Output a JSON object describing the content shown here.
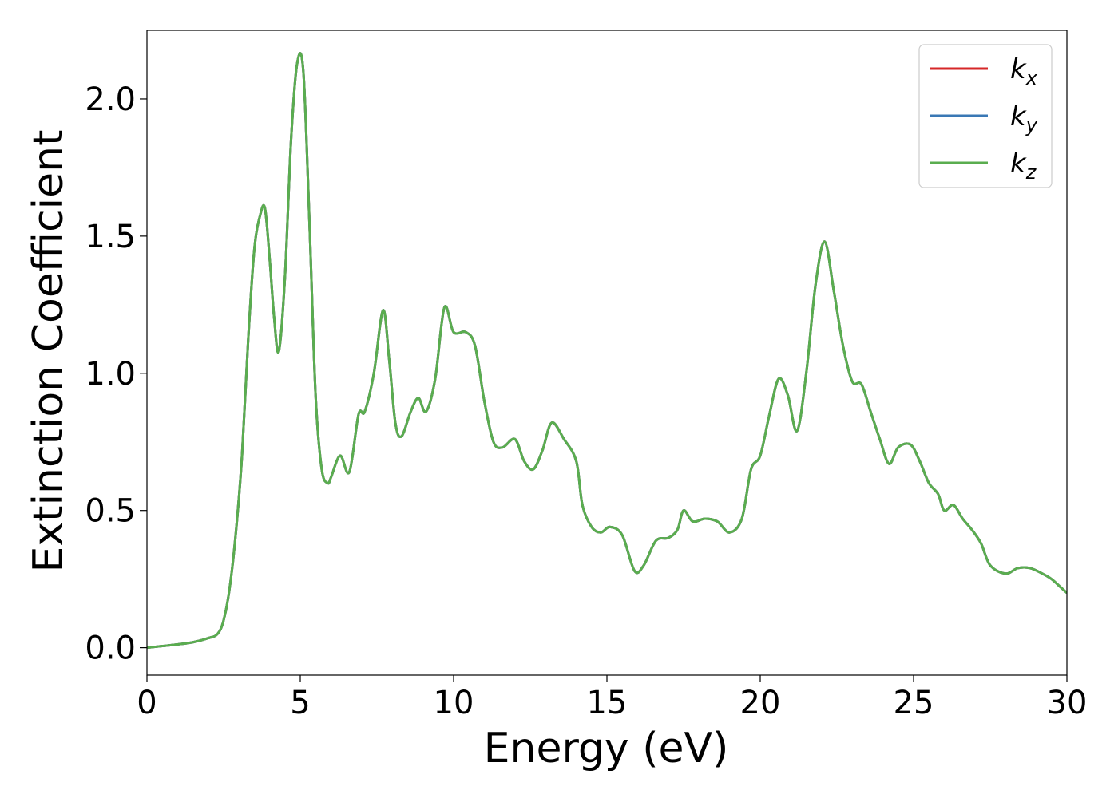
{
  "chart_data": {
    "type": "line",
    "title": "",
    "xlabel": "Energy (eV)",
    "ylabel": "Extinction Coefficient",
    "xlim": [
      0,
      30
    ],
    "ylim": [
      -0.1,
      2.25
    ],
    "xticks": [
      0,
      5,
      10,
      15,
      20,
      25,
      30
    ],
    "xtick_labels": [
      "0",
      "5",
      "10",
      "15",
      "20",
      "25",
      "30"
    ],
    "yticks": [
      0.0,
      0.5,
      1.0,
      1.5,
      2.0
    ],
    "ytick_labels": [
      "0.0",
      "0.5",
      "1.0",
      "1.5",
      "2.0"
    ],
    "grid": false,
    "legend_position": "top-right",
    "x": [
      0,
      0.5,
      1.0,
      1.5,
      2.0,
      2.3,
      2.5,
      2.7,
      2.9,
      3.1,
      3.3,
      3.5,
      3.7,
      3.85,
      4.0,
      4.15,
      4.3,
      4.5,
      4.7,
      4.9,
      5.1,
      5.3,
      5.5,
      5.7,
      5.9,
      6.0,
      6.3,
      6.6,
      6.9,
      7.1,
      7.4,
      7.7,
      7.9,
      8.1,
      8.3,
      8.6,
      8.85,
      9.1,
      9.4,
      9.7,
      10.0,
      10.4,
      10.7,
      11.0,
      11.3,
      11.6,
      12.0,
      12.3,
      12.6,
      12.9,
      13.2,
      13.6,
      14.0,
      14.2,
      14.5,
      14.8,
      15.1,
      15.5,
      15.9,
      16.2,
      16.6,
      17.0,
      17.3,
      17.5,
      17.8,
      18.2,
      18.6,
      19.0,
      19.4,
      19.7,
      20.0,
      20.3,
      20.6,
      20.9,
      21.2,
      21.5,
      21.8,
      22.1,
      22.4,
      22.7,
      23.0,
      23.3,
      23.6,
      23.9,
      24.2,
      24.5,
      24.9,
      25.2,
      25.5,
      25.8,
      26.0,
      26.3,
      26.6,
      26.9,
      27.2,
      27.5,
      28.0,
      28.4,
      28.8,
      29.2,
      29.5,
      29.8,
      30.0
    ],
    "series": [
      {
        "name": "kx",
        "color": "#d62728",
        "values": [
          0.0,
          0.006,
          0.012,
          0.02,
          0.035,
          0.05,
          0.1,
          0.22,
          0.42,
          0.7,
          1.12,
          1.45,
          1.58,
          1.6,
          1.42,
          1.2,
          1.08,
          1.35,
          1.85,
          2.13,
          2.1,
          1.55,
          0.92,
          0.65,
          0.6,
          0.62,
          0.7,
          0.64,
          0.85,
          0.86,
          1.0,
          1.23,
          1.05,
          0.82,
          0.77,
          0.86,
          0.91,
          0.86,
          0.98,
          1.24,
          1.15,
          1.15,
          1.1,
          0.9,
          0.75,
          0.73,
          0.76,
          0.68,
          0.65,
          0.72,
          0.82,
          0.76,
          0.68,
          0.52,
          0.44,
          0.42,
          0.44,
          0.41,
          0.28,
          0.3,
          0.39,
          0.4,
          0.43,
          0.5,
          0.46,
          0.47,
          0.46,
          0.42,
          0.47,
          0.65,
          0.7,
          0.85,
          0.98,
          0.92,
          0.79,
          1.0,
          1.32,
          1.48,
          1.3,
          1.1,
          0.97,
          0.96,
          0.86,
          0.76,
          0.67,
          0.73,
          0.74,
          0.68,
          0.6,
          0.56,
          0.5,
          0.52,
          0.47,
          0.43,
          0.38,
          0.3,
          0.27,
          0.29,
          0.29,
          0.27,
          0.25,
          0.22,
          0.2
        ]
      },
      {
        "name": "ky",
        "color": "#3a78b5",
        "values": [
          0.0,
          0.006,
          0.012,
          0.02,
          0.035,
          0.05,
          0.1,
          0.22,
          0.42,
          0.7,
          1.12,
          1.45,
          1.58,
          1.6,
          1.42,
          1.2,
          1.08,
          1.35,
          1.85,
          2.13,
          2.1,
          1.55,
          0.92,
          0.65,
          0.6,
          0.62,
          0.7,
          0.64,
          0.85,
          0.86,
          1.0,
          1.23,
          1.05,
          0.82,
          0.77,
          0.86,
          0.91,
          0.86,
          0.98,
          1.24,
          1.15,
          1.15,
          1.1,
          0.9,
          0.75,
          0.73,
          0.76,
          0.68,
          0.65,
          0.72,
          0.82,
          0.76,
          0.68,
          0.52,
          0.44,
          0.42,
          0.44,
          0.41,
          0.28,
          0.3,
          0.39,
          0.4,
          0.43,
          0.5,
          0.46,
          0.47,
          0.46,
          0.42,
          0.47,
          0.65,
          0.7,
          0.85,
          0.98,
          0.92,
          0.79,
          1.0,
          1.32,
          1.48,
          1.3,
          1.1,
          0.97,
          0.96,
          0.86,
          0.76,
          0.67,
          0.73,
          0.74,
          0.68,
          0.6,
          0.56,
          0.5,
          0.52,
          0.47,
          0.43,
          0.38,
          0.3,
          0.27,
          0.29,
          0.29,
          0.27,
          0.25,
          0.22,
          0.2
        ]
      },
      {
        "name": "kz",
        "color": "#5aad4f",
        "values": [
          0.0,
          0.006,
          0.012,
          0.02,
          0.035,
          0.05,
          0.1,
          0.22,
          0.42,
          0.7,
          1.12,
          1.45,
          1.58,
          1.6,
          1.42,
          1.2,
          1.08,
          1.35,
          1.85,
          2.13,
          2.1,
          1.55,
          0.92,
          0.65,
          0.6,
          0.62,
          0.7,
          0.64,
          0.85,
          0.86,
          1.0,
          1.23,
          1.05,
          0.82,
          0.77,
          0.86,
          0.91,
          0.86,
          0.98,
          1.24,
          1.15,
          1.15,
          1.1,
          0.9,
          0.75,
          0.73,
          0.76,
          0.68,
          0.65,
          0.72,
          0.82,
          0.76,
          0.68,
          0.52,
          0.44,
          0.42,
          0.44,
          0.41,
          0.28,
          0.3,
          0.39,
          0.4,
          0.43,
          0.5,
          0.46,
          0.47,
          0.46,
          0.42,
          0.47,
          0.65,
          0.7,
          0.85,
          0.98,
          0.92,
          0.79,
          1.0,
          1.32,
          1.48,
          1.3,
          1.1,
          0.97,
          0.96,
          0.86,
          0.76,
          0.67,
          0.73,
          0.74,
          0.68,
          0.6,
          0.56,
          0.5,
          0.52,
          0.47,
          0.43,
          0.38,
          0.3,
          0.27,
          0.29,
          0.29,
          0.27,
          0.25,
          0.22,
          0.2
        ]
      }
    ],
    "legend": [
      {
        "base": "k",
        "sub": "x",
        "color": "#d62728"
      },
      {
        "base": "k",
        "sub": "y",
        "color": "#3a78b5"
      },
      {
        "base": "k",
        "sub": "z",
        "color": "#5aad4f"
      }
    ]
  }
}
